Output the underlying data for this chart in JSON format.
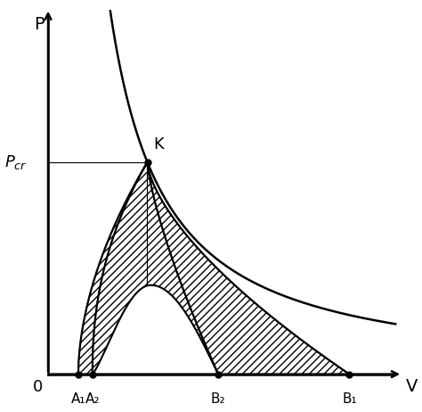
{
  "xlabel": "V",
  "ylabel": "P",
  "origin_label": "0",
  "critical_point_label": "K",
  "pcr_label": "P_{cr}",
  "point_labels": [
    "A₁",
    "A₂",
    "B₂",
    "B₁"
  ],
  "bg_color": "#ffffff",
  "xlim": [
    0,
    10
  ],
  "ylim": [
    0,
    10
  ],
  "Vcr": 2.8,
  "Pcr": 5.8,
  "A1_x": 0.85,
  "A2_x": 1.25,
  "B2_x": 4.8,
  "B1_x": 8.5
}
